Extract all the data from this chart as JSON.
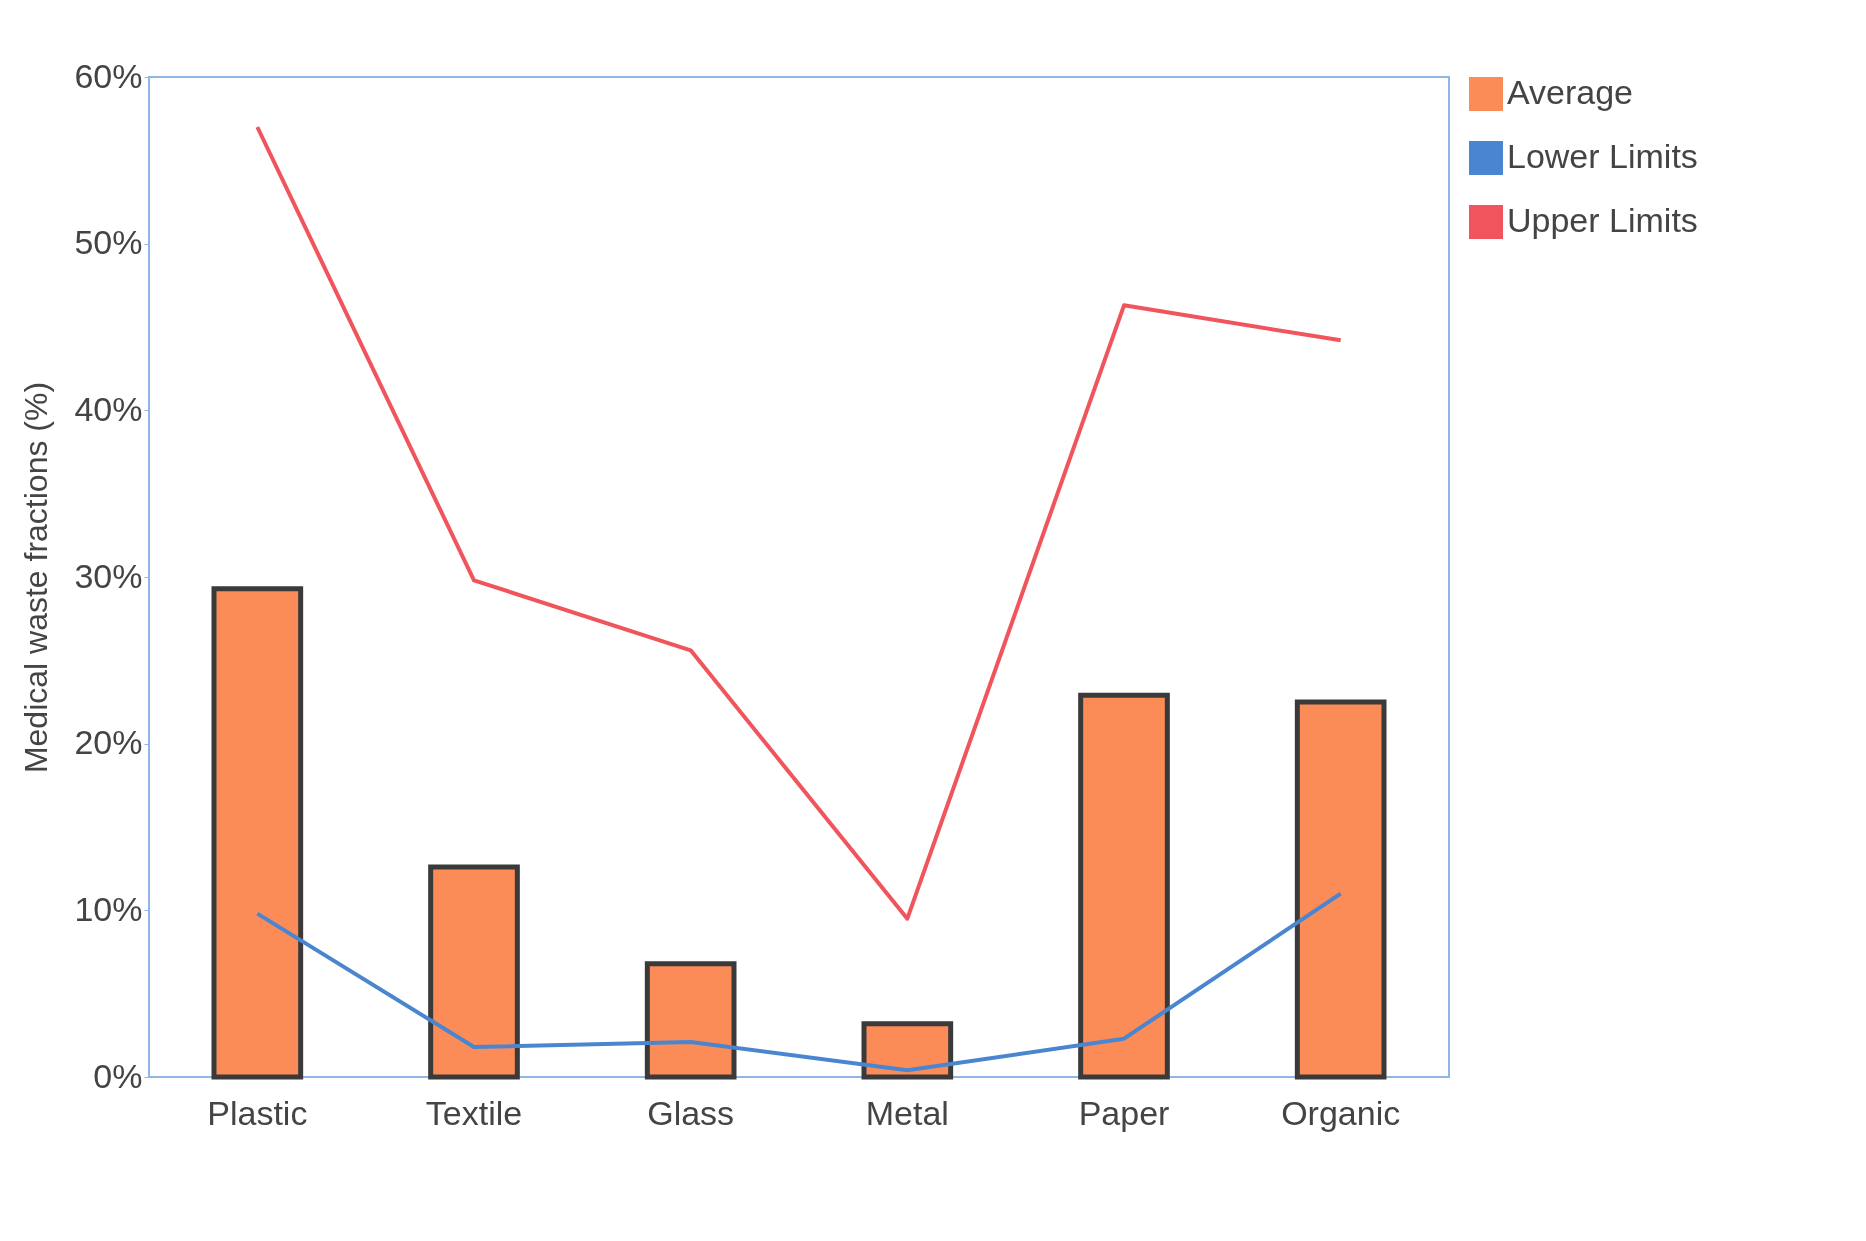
{
  "chart_data": {
    "type": "bar",
    "ylabel": "Medical waste fractions  (%)",
    "categories": [
      "Plastic",
      "Textile",
      "Glass",
      "Metal",
      "Paper",
      "Organic"
    ],
    "series": [
      {
        "name": "Average",
        "color": "#fb8c58",
        "values": [
          29.3,
          12.6,
          6.8,
          3.2,
          22.9,
          22.5
        ]
      },
      {
        "name": "Lower Limits",
        "type": "line",
        "color": "#4a86d0",
        "values": [
          9.8,
          1.8,
          2.1,
          0.4,
          2.3,
          11
        ]
      },
      {
        "name": "Upper Limits",
        "type": "line",
        "color": "#f0545c",
        "values": [
          57,
          29.8,
          25.6,
          9.5,
          46.3,
          44.2
        ]
      }
    ],
    "ylim": [
      0,
      60
    ],
    "yticks": [
      {
        "value": 0,
        "label": "0%"
      },
      {
        "value": 10,
        "label": "10%"
      },
      {
        "value": 20,
        "label": "20%"
      },
      {
        "value": 30,
        "label": "30%"
      },
      {
        "value": 40,
        "label": "40%"
      },
      {
        "value": 50,
        "label": "50%"
      },
      {
        "value": 60,
        "label": "60%"
      }
    ],
    "grid": false,
    "legend": "right"
  }
}
